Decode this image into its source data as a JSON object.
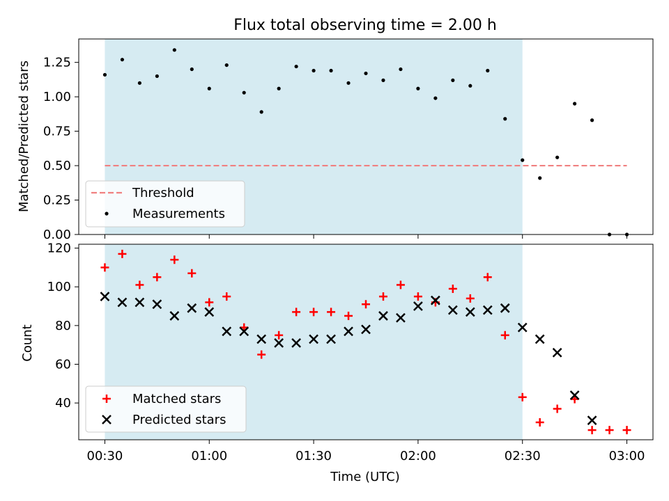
{
  "chart_data": [
    {
      "type": "scatter",
      "title": "Flux total observing time = 2.00 h",
      "ylabel": "Matched/Predicted stars",
      "x_ticks": [
        "00:30",
        "01:00",
        "01:30",
        "02:00",
        "02:30",
        "03:00"
      ],
      "x_range_minutes": [
        -7.5,
        157.5
      ],
      "ylim": [
        0,
        1.42
      ],
      "y_ticks": [
        "0.00",
        "0.25",
        "0.50",
        "0.75",
        "1.00",
        "1.25"
      ],
      "shaded_span_minutes": [
        0,
        120
      ],
      "shade_color": "#add8e6",
      "legend_position": "lower-left",
      "threshold": {
        "name": "Threshold",
        "value": 0.5,
        "x_minutes": [
          0,
          150
        ],
        "color": "#f08080",
        "style": "dashed"
      },
      "series": [
        {
          "name": "Measurements",
          "marker": "dot",
          "color": "#000000",
          "x_minutes": [
            0,
            5,
            10,
            15,
            20,
            25,
            30,
            35,
            40,
            45,
            50,
            55,
            60,
            65,
            70,
            75,
            80,
            85,
            90,
            95,
            100,
            105,
            110,
            115,
            120,
            125,
            130,
            135,
            140,
            145,
            150
          ],
          "values": [
            1.16,
            1.27,
            1.1,
            1.15,
            1.34,
            1.2,
            1.06,
            1.23,
            1.03,
            0.89,
            1.06,
            1.22,
            1.19,
            1.19,
            1.1,
            1.17,
            1.12,
            1.2,
            1.06,
            0.99,
            1.12,
            1.08,
            1.19,
            0.84,
            0.54,
            0.41,
            0.56,
            0.95,
            0.83,
            0.0,
            0.0
          ]
        }
      ]
    },
    {
      "type": "scatter",
      "xlabel": "Time (UTC)",
      "ylabel": "Count",
      "x_ticks": [
        "00:30",
        "01:00",
        "01:30",
        "02:00",
        "02:30",
        "03:00"
      ],
      "x_range_minutes": [
        -7.5,
        157.5
      ],
      "ylim": [
        21,
        122
      ],
      "y_ticks": [
        "40",
        "60",
        "80",
        "100",
        "120"
      ],
      "shaded_span_minutes": [
        0,
        120
      ],
      "shade_color": "#add8e6",
      "legend_position": "lower-left",
      "series": [
        {
          "name": "Matched stars",
          "marker": "plus",
          "color": "#ff0000",
          "x_minutes": [
            0,
            5,
            10,
            15,
            20,
            25,
            30,
            35,
            40,
            45,
            50,
            55,
            60,
            65,
            70,
            75,
            80,
            85,
            90,
            95,
            100,
            105,
            110,
            115,
            120,
            125,
            130,
            135,
            140,
            145,
            150
          ],
          "values": [
            110,
            117,
            101,
            105,
            114,
            107,
            92,
            95,
            79,
            65,
            75,
            87,
            87,
            87,
            85,
            91,
            95,
            101,
            95,
            92,
            99,
            94,
            105,
            75,
            43,
            30,
            37,
            42,
            26,
            26,
            26
          ]
        },
        {
          "name": "Predicted stars",
          "marker": "x",
          "color": "#000000",
          "x_minutes": [
            0,
            5,
            10,
            15,
            20,
            25,
            30,
            35,
            40,
            45,
            50,
            55,
            60,
            65,
            70,
            75,
            80,
            85,
            90,
            95,
            100,
            105,
            110,
            115,
            120,
            125,
            130,
            135,
            140
          ],
          "values": [
            95,
            92,
            92,
            91,
            85,
            89,
            87,
            77,
            77,
            73,
            71,
            71,
            73,
            73,
            77,
            78,
            85,
            84,
            90,
            93,
            88,
            87,
            88,
            89,
            79,
            73,
            66,
            44,
            31
          ]
        }
      ]
    }
  ]
}
